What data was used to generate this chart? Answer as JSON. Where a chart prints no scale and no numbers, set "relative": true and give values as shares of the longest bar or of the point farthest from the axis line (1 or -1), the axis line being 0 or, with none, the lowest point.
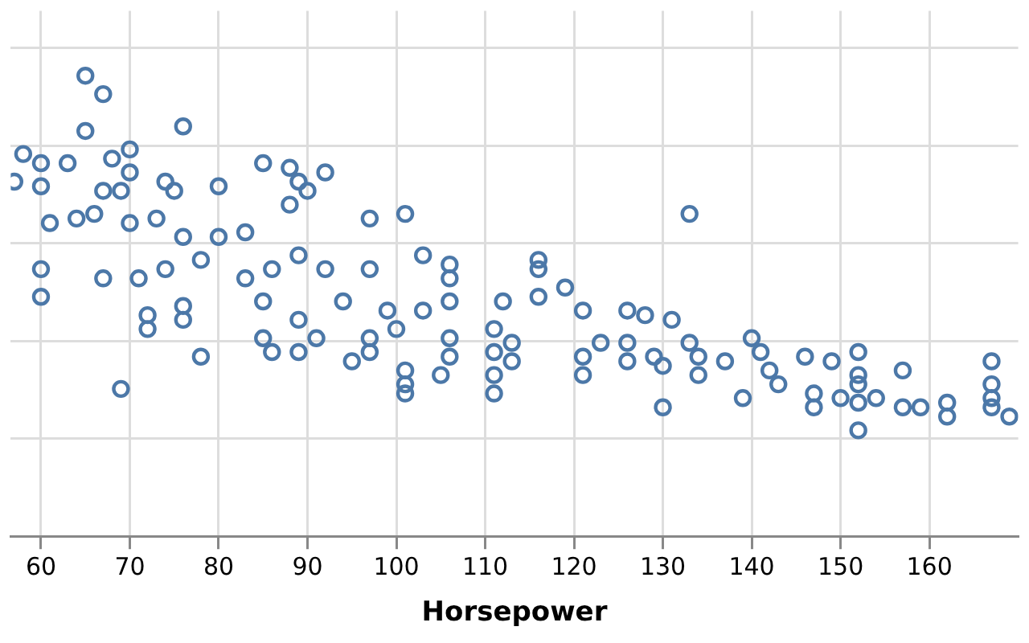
{
  "chart_data": {
    "type": "scatter",
    "xlabel": "Horsepower",
    "relative": true,
    "xlim": [
      56.6,
      170
    ],
    "xticks": [
      60,
      70,
      80,
      90,
      100,
      110,
      120,
      130,
      140,
      150,
      160
    ],
    "grid": true,
    "legend": false,
    "marker": "circle",
    "series": [
      {
        "color": "#4c78a8",
        "x": [
          65,
          67,
          65,
          76,
          70,
          58,
          60,
          63,
          68,
          70,
          57,
          60,
          67,
          69,
          74,
          75,
          80,
          85,
          88,
          92,
          90,
          88,
          101,
          97,
          89,
          61,
          64,
          66,
          70,
          73,
          76,
          80,
          83,
          60,
          60,
          67,
          71,
          78,
          72,
          72,
          74,
          83,
          86,
          89,
          92,
          97,
          103,
          106,
          106,
          116,
          116,
          119,
          116,
          121,
          126,
          128,
          131,
          133,
          133,
          134,
          130,
          129,
          134,
          137,
          139,
          140,
          141,
          142,
          143,
          146,
          149,
          147,
          147,
          150,
          152,
          152,
          152,
          152,
          152,
          154,
          157,
          157,
          159,
          162,
          162,
          167,
          167,
          167,
          167,
          169,
          69,
          78,
          76,
          76,
          85,
          85,
          86,
          89,
          89,
          91,
          94,
          95,
          97,
          97,
          100,
          101,
          101,
          101,
          105,
          106,
          106,
          111,
          111,
          111,
          111,
          113,
          113,
          112,
          106,
          103,
          99,
          121,
          121,
          123,
          126,
          126,
          130
        ],
        "values": [
          1.0,
          0.96,
          0.88,
          0.89,
          0.84,
          0.83,
          0.81,
          0.81,
          0.82,
          0.79,
          0.77,
          0.76,
          0.75,
          0.75,
          0.77,
          0.75,
          0.76,
          0.81,
          0.8,
          0.79,
          0.75,
          0.72,
          0.7,
          0.69,
          0.77,
          0.68,
          0.69,
          0.7,
          0.68,
          0.69,
          0.65,
          0.65,
          0.66,
          0.58,
          0.52,
          0.56,
          0.56,
          0.6,
          0.48,
          0.45,
          0.58,
          0.56,
          0.58,
          0.61,
          0.58,
          0.58,
          0.61,
          0.59,
          0.56,
          0.6,
          0.58,
          0.54,
          0.52,
          0.49,
          0.49,
          0.48,
          0.47,
          0.7,
          0.42,
          0.35,
          0.28,
          0.39,
          0.39,
          0.38,
          0.3,
          0.43,
          0.4,
          0.36,
          0.33,
          0.39,
          0.38,
          0.31,
          0.28,
          0.3,
          0.4,
          0.35,
          0.33,
          0.29,
          0.23,
          0.3,
          0.36,
          0.28,
          0.28,
          0.29,
          0.26,
          0.38,
          0.33,
          0.3,
          0.28,
          0.26,
          0.32,
          0.39,
          0.47,
          0.5,
          0.51,
          0.43,
          0.4,
          0.4,
          0.47,
          0.43,
          0.51,
          0.38,
          0.43,
          0.4,
          0.45,
          0.36,
          0.33,
          0.31,
          0.35,
          0.39,
          0.43,
          0.45,
          0.4,
          0.35,
          0.31,
          0.42,
          0.38,
          0.51,
          0.51,
          0.49,
          0.49,
          0.39,
          0.35,
          0.42,
          0.42,
          0.38,
          0.37
        ]
      }
    ]
  }
}
